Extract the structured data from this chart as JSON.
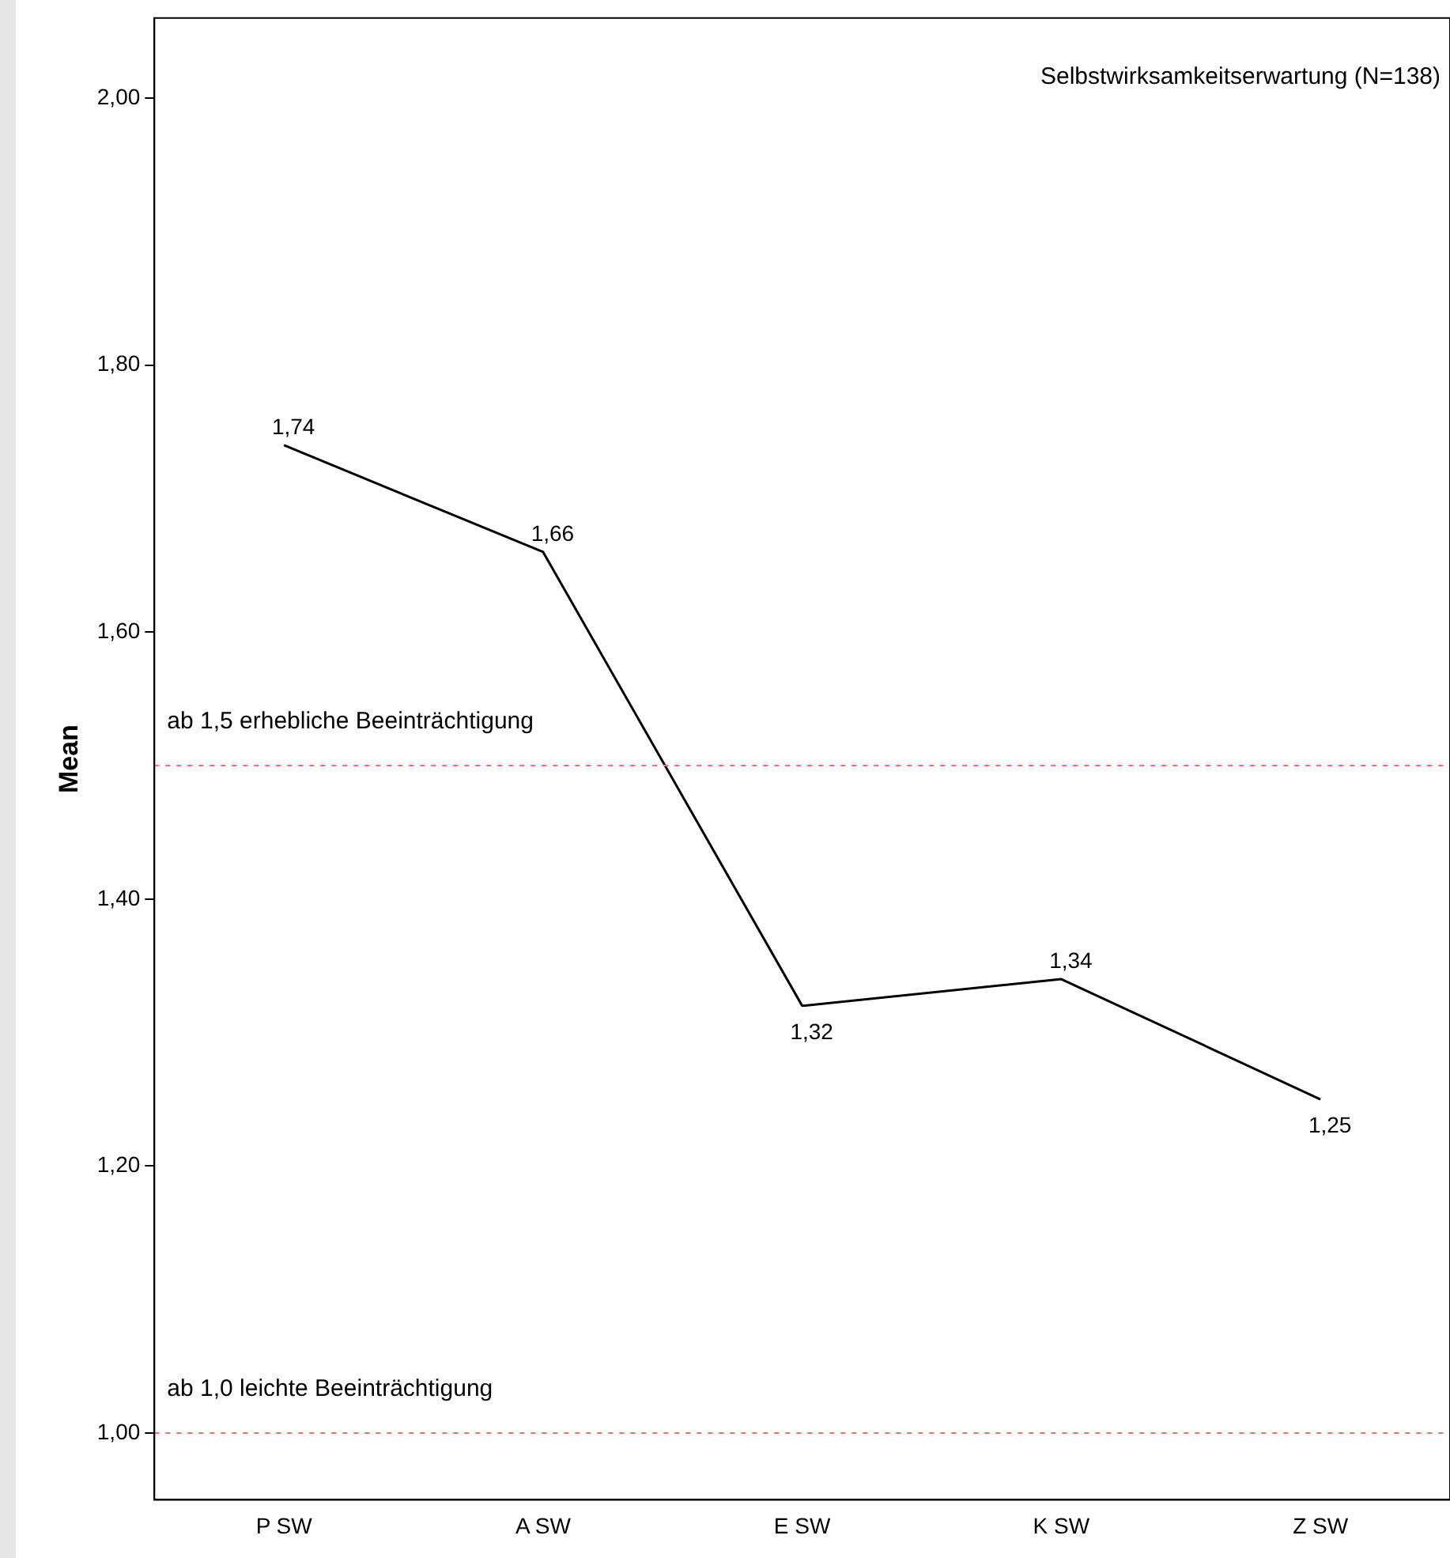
{
  "chart_data": {
    "type": "line",
    "ylabel": "Mean",
    "categories": [
      "P SW",
      "A SW",
      "E SW",
      "K SW",
      "Z SW"
    ],
    "series": [
      {
        "color": "#000000",
        "values": [
          1.74,
          1.66,
          1.32,
          1.34,
          1.25
        ],
        "value_labels": [
          "1,74",
          "1,66",
          "1,32",
          "1,34",
          "1,25"
        ]
      }
    ],
    "ylim": [
      0.95,
      2.06
    ],
    "yticks": [
      {
        "value": 1,
        "label": "1,00"
      },
      {
        "value": 1.2,
        "label": "1,20"
      },
      {
        "value": 1.4,
        "label": "1,40"
      },
      {
        "value": 1.6,
        "label": "1,60"
      },
      {
        "value": 1.8,
        "label": "1,80"
      },
      {
        "value": 2,
        "label": "2,00"
      }
    ],
    "ref_lines": [
      {
        "axis": "y",
        "value": 1.5,
        "label": "ab 1,5 erhebliche Beeinträchtigung",
        "color": "#ff6666",
        "line_style": "dotted"
      },
      {
        "axis": "y",
        "value": 1,
        "label": "ab 1,0 leichte Beeinträchtigung",
        "color": "#ff6666",
        "line_style": "dotted"
      }
    ],
    "annotations": [
      "Selbstwirksamkeitserwartung (N=138)"
    ],
    "grid": false,
    "legend": false,
    "marker": "none",
    "line_style": "solid"
  }
}
